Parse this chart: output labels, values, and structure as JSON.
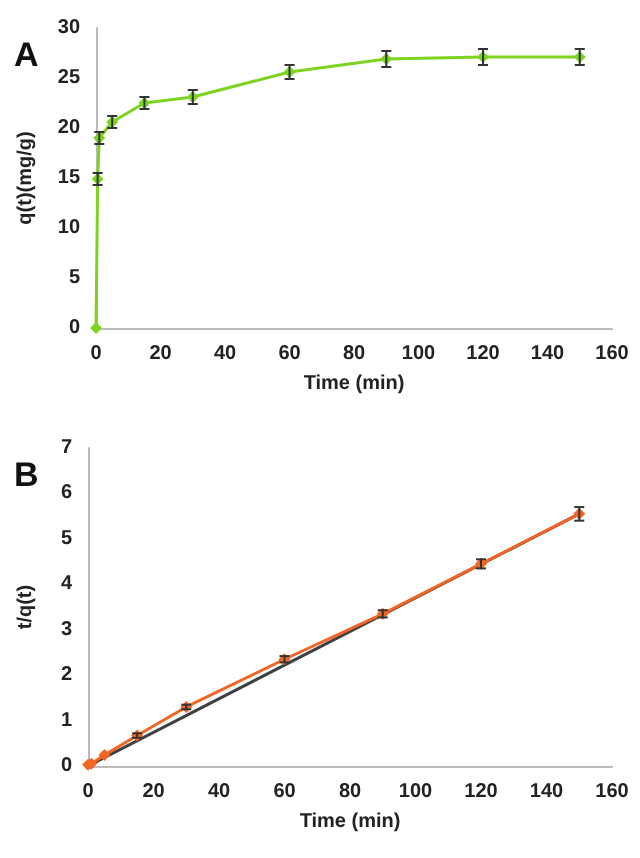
{
  "chart_data": [
    {
      "type": "line",
      "title": "A",
      "xlabel": "Time (min)",
      "ylabel": "q(t)(mg/g)",
      "xlim": [
        0,
        160
      ],
      "xticks": [
        0,
        20,
        40,
        60,
        80,
        100,
        120,
        140,
        160
      ],
      "ylim": [
        0,
        30
      ],
      "yticks": [
        0,
        5,
        10,
        15,
        20,
        25,
        30
      ],
      "grid": false,
      "marker": "diamond",
      "line_style": "solid",
      "series": [
        {
          "color": "#7ed321",
          "x": [
            0,
            0.5,
            1,
            5,
            15,
            30,
            60,
            90,
            120,
            150
          ],
          "values": [
            0,
            14.9,
            19,
            20.6,
            22.5,
            23.1,
            25.6,
            26.9,
            27.1,
            27.1
          ],
          "errors": [
            null,
            0.6,
            0.6,
            0.6,
            0.6,
            0.7,
            0.7,
            0.8,
            0.8,
            0.8
          ]
        }
      ]
    },
    {
      "type": "line",
      "title": "B",
      "xlabel": "Time (min)",
      "ylabel": "t/q(t)",
      "xlim": [
        0,
        160
      ],
      "xticks": [
        0,
        20,
        40,
        60,
        80,
        100,
        120,
        140,
        160
      ],
      "ylim": [
        0,
        7
      ],
      "yticks": [
        0,
        1,
        2,
        3,
        4,
        5,
        6,
        7
      ],
      "grid": false,
      "marker": "diamond",
      "line_style": "solid",
      "series": [
        {
          "type": "line",
          "marker": "none",
          "color": "#404040",
          "x": [
            0,
            150
          ],
          "values": [
            0,
            5.55
          ]
        },
        {
          "color": "#f26522",
          "x": [
            0,
            1,
            5,
            15,
            30,
            60,
            90,
            120,
            150
          ],
          "values": [
            0.03,
            0.05,
            0.24,
            0.67,
            1.3,
            2.35,
            3.35,
            4.45,
            5.55
          ],
          "errors": [
            null,
            null,
            null,
            0.05,
            0.05,
            0.07,
            0.08,
            0.1,
            0.15
          ]
        }
      ]
    }
  ]
}
